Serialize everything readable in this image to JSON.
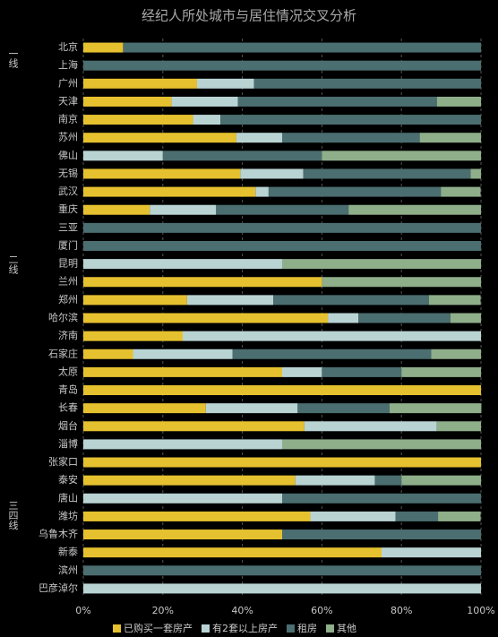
{
  "chart_data": {
    "type": "bar",
    "orientation": "horizontal",
    "stacked": true,
    "title": "经纪人所处城市与居住情况交叉分析",
    "tiers": [
      "一线",
      "二线",
      "三四线"
    ],
    "categories": [
      "北京",
      "上海",
      "广州",
      "天津",
      "南京",
      "苏州",
      "佛山",
      "无锡",
      "武汉",
      "重庆",
      "三亚",
      "厦门",
      "昆明",
      "兰州",
      "郑州",
      "哈尔滨",
      "济南",
      "石家庄",
      "太原",
      "青岛",
      "长春",
      "烟台",
      "淄博",
      "张家口",
      "泰安",
      "唐山",
      "潍坊",
      "乌鲁木齐",
      "新泰",
      "滨州",
      "巴彦淖尔"
    ],
    "series": [
      {
        "name": "已购买一套房产",
        "color": "#e6c12f",
        "values": [
          10,
          0,
          28.6,
          22.2,
          27.6,
          38.5,
          0,
          39.5,
          43.3,
          16.7,
          0,
          0,
          0,
          60,
          26.1,
          61.5,
          25,
          12.5,
          50,
          100,
          30.8,
          55.6,
          0,
          100,
          53.3,
          0,
          57.1,
          50,
          75,
          0,
          0
        ]
      },
      {
        "name": "有2套以上房产",
        "color": "#b9d3d3",
        "values": [
          0,
          0,
          14.3,
          16.7,
          6.9,
          11.5,
          20,
          15.8,
          3.3,
          16.7,
          0,
          0,
          50,
          0,
          21.7,
          7.7,
          75,
          25,
          10,
          0,
          23.1,
          33.3,
          50,
          0,
          20,
          50,
          21.4,
          0,
          25,
          0,
          100
        ]
      },
      {
        "name": "租房",
        "color": "#4b6e70",
        "values": [
          90,
          100,
          57.1,
          50,
          65.5,
          34.6,
          40,
          42.1,
          43.3,
          33.3,
          100,
          100,
          0,
          0,
          39.1,
          23.1,
          0,
          50,
          20,
          0,
          23.1,
          0,
          0,
          0,
          6.7,
          50,
          10.7,
          50,
          0,
          100,
          0
        ]
      },
      {
        "name": "其他",
        "color": "#8fae8a",
        "values": [
          0,
          0,
          0,
          11.1,
          0,
          15.4,
          40,
          2.6,
          10,
          33.3,
          0,
          0,
          50,
          40,
          13,
          7.7,
          0,
          12.5,
          20,
          0,
          23.1,
          11.1,
          50,
          0,
          20,
          0,
          10.7,
          0,
          0,
          0,
          0
        ]
      }
    ],
    "xlim": [
      0,
      100
    ],
    "xticks": [
      {
        "value": 0,
        "label": "0%"
      },
      {
        "value": 20,
        "label": "20%"
      },
      {
        "value": 40,
        "label": "40%"
      },
      {
        "value": 60,
        "label": "60%"
      },
      {
        "value": 80,
        "label": "80%"
      },
      {
        "value": 100,
        "label": "100%"
      }
    ],
    "grid": true
  }
}
